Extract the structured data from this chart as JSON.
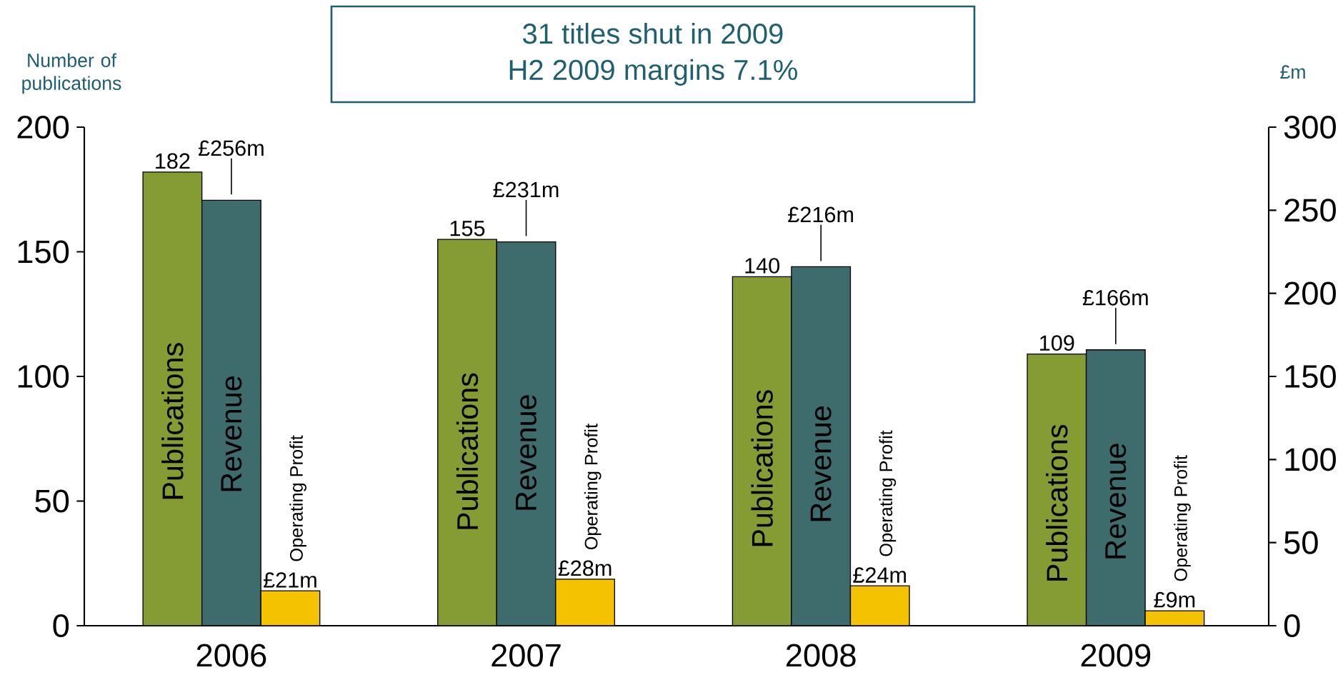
{
  "chart_data": {
    "type": "bar",
    "title": "31 titles shut in 2009",
    "subtitle": "H2 2009 margins 7.1%",
    "ylabel": "Number of publications",
    "y2label": "£m",
    "categories": [
      "2006",
      "2007",
      "2008",
      "2009"
    ],
    "series": [
      {
        "name": "Publications",
        "color": "#849c33",
        "values": [
          182,
          155,
          140,
          109
        ],
        "value_labels": [
          "182",
          "155",
          "140",
          "109"
        ]
      },
      {
        "name": "Revenue",
        "color": "#3e6b6b",
        "values": [
          256,
          231,
          216,
          166
        ],
        "value_labels": [
          "£256m",
          "£231m",
          "£216m",
          "£166m"
        ],
        "axis": "y2"
      },
      {
        "name": "Operating Profit",
        "color": "#f5c200",
        "values": [
          21,
          28,
          24,
          9
        ],
        "value_labels": [
          "£21m",
          "£28m",
          "£24m",
          "£9m"
        ],
        "axis": "y2"
      }
    ],
    "ylim": [
      0,
      200
    ],
    "yticks": [
      0,
      50,
      100,
      150,
      200
    ],
    "y2lim": [
      0,
      300
    ],
    "y2ticks": [
      0,
      50,
      100,
      150,
      200,
      250,
      300
    ]
  }
}
